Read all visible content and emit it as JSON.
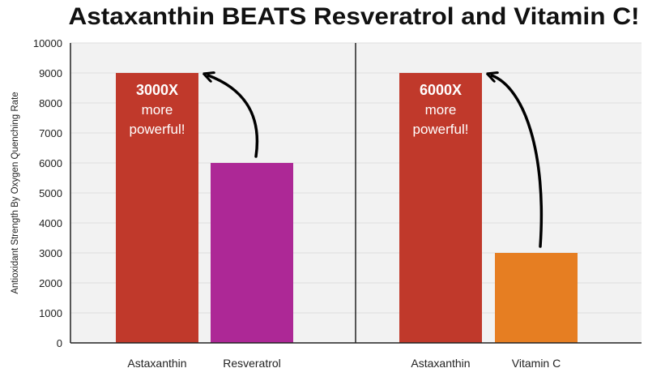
{
  "chart_data": {
    "type": "bar",
    "title": "Astaxanthin BEATS Resveratrol and Vitamin C!",
    "ylabel": "Antioxidant Strength By Oxygen Quenching Rate",
    "ylim": [
      0,
      10000
    ],
    "yticks": [
      0,
      1000,
      2000,
      3000,
      4000,
      5000,
      6000,
      7000,
      8000,
      9000,
      10000
    ],
    "grid": true,
    "panels": [
      {
        "categories": [
          "Astaxanthin",
          "Resveratrol"
        ],
        "values": [
          9000,
          6000
        ],
        "colors": [
          "#c0392b",
          "#ad2896"
        ],
        "annotation": {
          "lines": [
            "3000X",
            "more",
            "powerful!"
          ]
        }
      },
      {
        "categories": [
          "Astaxanthin",
          "Vitamin C"
        ],
        "values": [
          9000,
          3000
        ],
        "colors": [
          "#c0392b",
          "#e67e22"
        ],
        "annotation": {
          "lines": [
            "6000X",
            "more",
            "powerful!"
          ]
        }
      }
    ]
  },
  "colors": {
    "plot_background": "#f2f2f2",
    "gridline": "#dddddd",
    "axis": "#222222",
    "arrow": "#000000",
    "annotation_text": "#ffffff"
  }
}
